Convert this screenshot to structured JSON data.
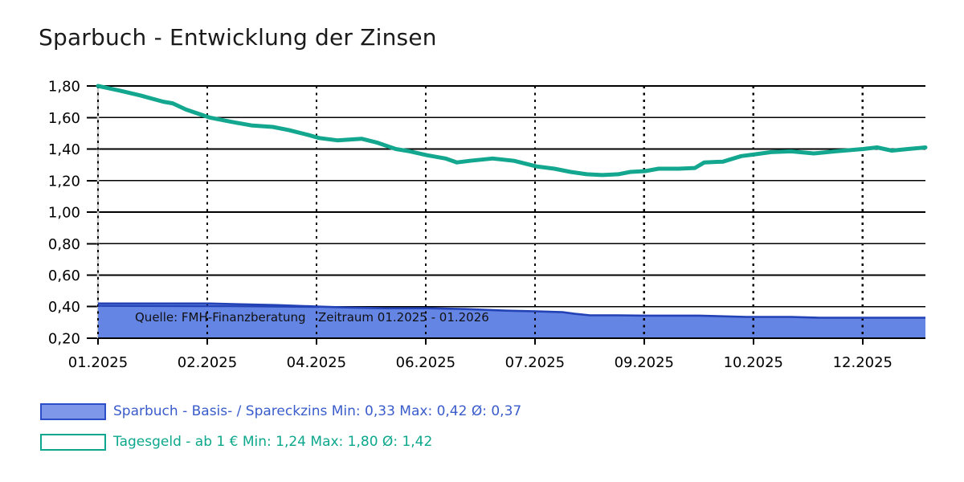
{
  "header": {
    "title": "Sparbuch - Entwicklung der Zinsen"
  },
  "chart_data": {
    "type": "area+line",
    "title": "Sparbuch - Entwicklung der Zinsen",
    "grid": {
      "horizontal": "solid-black",
      "vertical": "dashed-black",
      "left_border_color": "#cccccc"
    },
    "y_axis": {
      "range": [
        0.2,
        1.8
      ],
      "ticks": [
        {
          "label": "1,80",
          "value": 1.8
        },
        {
          "label": "1,60",
          "value": 1.6
        },
        {
          "label": "1,40",
          "value": 1.4
        },
        {
          "label": "1,20",
          "value": 1.2
        },
        {
          "label": "1,00",
          "value": 1.0
        },
        {
          "label": "0,80",
          "value": 0.8
        },
        {
          "label": "0,60",
          "value": 0.6
        },
        {
          "label": "0,40",
          "value": 0.4
        },
        {
          "label": "0,20",
          "value": 0.2
        }
      ]
    },
    "x_axis": {
      "range": [
        0,
        12.31
      ],
      "unit": "months-since-01.2025",
      "ticks": [
        {
          "label": "01.2025",
          "month": 0
        },
        {
          "label": "02.2025",
          "month": 1.625
        },
        {
          "label": "04.2025",
          "month": 3.25
        },
        {
          "label": "06.2025",
          "month": 4.875
        },
        {
          "label": "07.2025",
          "month": 6.5
        },
        {
          "label": "09.2025",
          "month": 8.125
        },
        {
          "label": "10.2025",
          "month": 9.75
        },
        {
          "label": "12.2025",
          "month": 11.375
        }
      ]
    },
    "annotations": {
      "source": "Quelle: FMH-Finanzberatung",
      "period": "Zeitraum 01.2025 - 01.2026"
    },
    "series": [
      {
        "name": "Sparbuch - Basis- / Spareckzins",
        "type": "area",
        "fill": "#6585E5",
        "stroke": "#2342B5",
        "min": "0,33",
        "max": "0,42",
        "avg": "0,37",
        "points": [
          [
            0,
            0.42
          ],
          [
            1.66,
            0.42
          ],
          [
            2.13,
            0.415
          ],
          [
            2.66,
            0.41
          ],
          [
            3.29,
            0.4
          ],
          [
            3.68,
            0.395
          ],
          [
            4.28,
            0.39
          ],
          [
            4.9,
            0.39
          ],
          [
            5.47,
            0.385
          ],
          [
            6.07,
            0.375
          ],
          [
            6.52,
            0.37
          ],
          [
            6.91,
            0.365
          ],
          [
            7.09,
            0.355
          ],
          [
            7.32,
            0.345
          ],
          [
            7.74,
            0.345
          ],
          [
            8.14,
            0.343
          ],
          [
            8.94,
            0.343
          ],
          [
            9.65,
            0.335
          ],
          [
            10.31,
            0.335
          ],
          [
            10.73,
            0.33
          ],
          [
            12.31,
            0.33
          ]
        ],
        "secondary_points": [
          [
            0,
            0.405
          ],
          [
            2.0,
            0.403
          ],
          [
            3.29,
            0.398
          ]
        ]
      },
      {
        "name": "Tagesgeld - ab 1 €",
        "type": "line",
        "stroke": "#12A78E",
        "min": "1,24",
        "max": "1,80",
        "avg": "1,42",
        "points": [
          [
            0,
            1.8
          ],
          [
            0.33,
            1.77
          ],
          [
            0.63,
            1.74
          ],
          [
            0.97,
            1.7
          ],
          [
            1.11,
            1.69
          ],
          [
            1.31,
            1.65
          ],
          [
            1.66,
            1.6
          ],
          [
            2.01,
            1.57
          ],
          [
            2.28,
            1.55
          ],
          [
            2.6,
            1.54
          ],
          [
            2.84,
            1.52
          ],
          [
            3.12,
            1.49
          ],
          [
            3.29,
            1.47
          ],
          [
            3.56,
            1.455
          ],
          [
            3.92,
            1.465
          ],
          [
            4.16,
            1.44
          ],
          [
            4.43,
            1.4
          ],
          [
            4.64,
            1.385
          ],
          [
            4.9,
            1.36
          ],
          [
            5.17,
            1.34
          ],
          [
            5.34,
            1.315
          ],
          [
            5.53,
            1.325
          ],
          [
            5.87,
            1.34
          ],
          [
            6.19,
            1.325
          ],
          [
            6.52,
            1.29
          ],
          [
            6.79,
            1.275
          ],
          [
            7.03,
            1.255
          ],
          [
            7.27,
            1.24
          ],
          [
            7.5,
            1.235
          ],
          [
            7.74,
            1.24
          ],
          [
            7.92,
            1.255
          ],
          [
            8.14,
            1.26
          ],
          [
            8.34,
            1.275
          ],
          [
            8.64,
            1.275
          ],
          [
            8.88,
            1.28
          ],
          [
            9.02,
            1.315
          ],
          [
            9.3,
            1.32
          ],
          [
            9.57,
            1.355
          ],
          [
            9.75,
            1.365
          ],
          [
            10.01,
            1.38
          ],
          [
            10.31,
            1.385
          ],
          [
            10.65,
            1.372
          ],
          [
            10.97,
            1.385
          ],
          [
            11.38,
            1.4
          ],
          [
            11.59,
            1.41
          ],
          [
            11.81,
            1.39
          ],
          [
            12.05,
            1.4
          ],
          [
            12.31,
            1.41
          ]
        ]
      }
    ]
  },
  "legend": {
    "rows": [
      {
        "label": "Sparbuch - Basis- / Spareckzins Min: 0,33 Max: 0,42 Ø: 0,37",
        "text_color": "#3A5CCB",
        "swatch_fill": "#7E97E9",
        "swatch_border": "#2B4EC8"
      },
      {
        "label": "Tagesgeld - ab 1 € Min: 1,24 Max: 1,80 Ø: 1,42",
        "text_color": "#0CA78C",
        "swatch_fill": "#FFFFFF",
        "swatch_border": "#0CA78C"
      }
    ]
  }
}
